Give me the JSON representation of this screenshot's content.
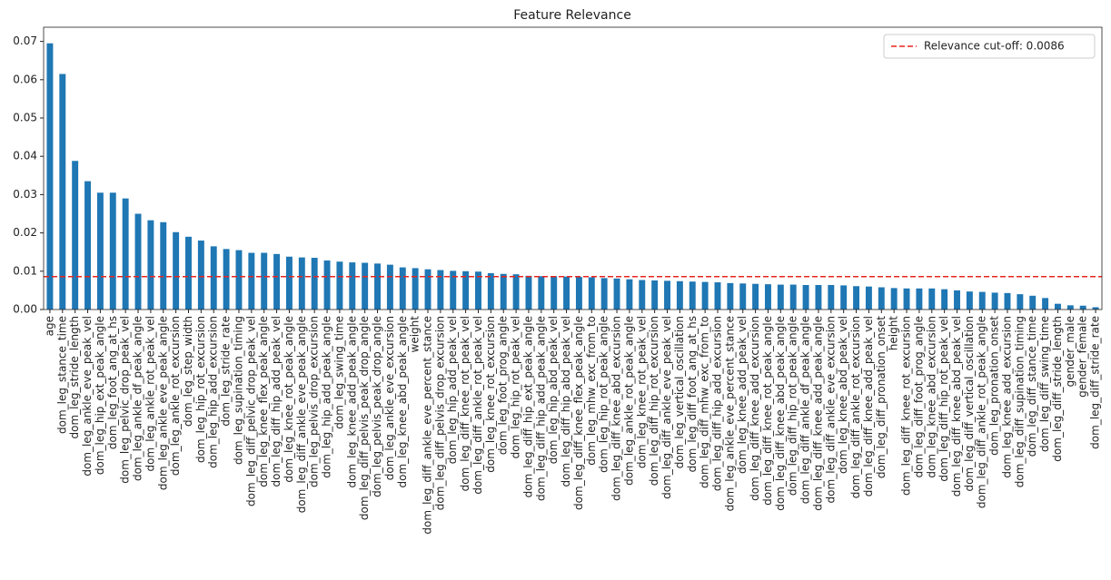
{
  "chart_data": {
    "type": "bar",
    "title": "Feature Relevance",
    "categories": [
      "age",
      "dom_leg_stance_time",
      "dom_leg_stride_length",
      "dom_leg_ankle_eve_peak_vel",
      "dom_leg_hip_ext_peak_angle",
      "dom_leg_foot_ang_at_hs",
      "dom_leg_pelvic_drop_peak_vel",
      "dom_leg_ankle_df_peak_angle",
      "dom_leg_ankle_rot_peak_vel",
      "dom_leg_ankle_eve_peak_angle",
      "dom_leg_ankle_rot_excursion",
      "dom_leg_step_width",
      "dom_leg_hip_rot_excursion",
      "dom_leg_hip_add_excursion",
      "dom_leg_stride_rate",
      "dom_leg_supination_timing",
      "dom_leg_diff_pelvic_drop_peak_vel",
      "dom_leg_knee_flex_peak_angle",
      "dom_leg_diff_hip_add_peak_vel",
      "dom_leg_knee_rot_peak_angle",
      "dom_leg_diff_ankle_eve_peak_angle",
      "dom_leg_pelvis_drop_excursion",
      "dom_leg_hip_add_peak_angle",
      "dom_leg_swing_time",
      "dom_leg_knee_add_peak_angle",
      "dom_leg_diff_pelvis_peak_drop_angle",
      "dom_leg_pelvis_peak_drop_angle",
      "dom_leg_ankle_eve_excursion",
      "dom_leg_knee_abd_peak_angle",
      "weight",
      "dom_leg_diff_ankle_eve_percent_stance",
      "dom_leg_diff_pelvis_drop_excursion",
      "dom_leg_hip_add_peak_vel",
      "dom_leg_diff_knee_rot_peak_vel",
      "dom_leg_diff_ankle_rot_peak_vel",
      "dom_leg_knee_rot_excursion",
      "dom_leg_foot_prog_angle",
      "dom_leg_hip_rot_peak_vel",
      "dom_leg_diff_hip_ext_peak_angle",
      "dom_leg_diff_hip_add_peak_angle",
      "dom_leg_hip_abd_peak_vel",
      "dom_leg_diff_hip_abd_peak_vel",
      "dom_leg_diff_knee_flex_peak_angle",
      "dom_leg_mhw_exc_from_to",
      "dom_leg_hip_rot_peak_angle",
      "dom_leg_diff_knee_abd_excursion",
      "dom_leg_ankle_rot_peak_angle",
      "dom_leg_knee_rot_peak_vel",
      "dom_leg_diff_hip_rot_excursion",
      "dom_leg_diff_ankle_eve_peak_vel",
      "dom_leg_vertical_oscillation",
      "dom_leg_diff_foot_ang_at_hs",
      "dom_leg_diff_mhw_exc_from_to",
      "dom_leg_diff_hip_add_excursion",
      "dom_leg_ankle_eve_percent_stance",
      "dom_leg_knee_add_peak_vel",
      "dom_leg_diff_knee_add_excursion",
      "dom_leg_diff_knee_rot_peak_angle",
      "dom_leg_diff_knee_abd_peak_angle",
      "dom_leg_diff_hip_rot_peak_angle",
      "dom_leg_diff_ankle_df_peak_angle",
      "dom_leg_diff_knee_add_peak_angle",
      "dom_leg_diff_ankle_eve_excursion",
      "dom_leg_knee_abd_peak_vel",
      "dom_leg_diff_ankle_rot_excursion",
      "dom_leg_diff_knee_add_peak_vel",
      "dom_leg_diff_pronation_onset",
      "height",
      "dom_leg_diff_knee_rot_excursion",
      "dom_leg_diff_foot_prog_angle",
      "dom_leg_knee_abd_excursion",
      "dom_leg_diff_hip_rot_peak_vel",
      "dom_leg_diff_knee_abd_peak_vel",
      "dom_leg_diff_vertical_oscillation",
      "dom_leg_diff_ankle_rot_peak_angle",
      "dom_leg_pronation_onset",
      "dom_leg_knee_add_excursion",
      "dom_leg_diff_supination_timing",
      "dom_leg_diff_stance_time",
      "dom_leg_diff_swing_time",
      "dom_leg_diff_stride_length",
      "gender_male",
      "gender_female",
      "dom_leg_diff_stride_rate"
    ],
    "values": [
      0.0695,
      0.0615,
      0.0388,
      0.0335,
      0.0305,
      0.0305,
      0.029,
      0.025,
      0.0233,
      0.0228,
      0.0202,
      0.019,
      0.018,
      0.0165,
      0.0158,
      0.0155,
      0.0148,
      0.0148,
      0.0145,
      0.0138,
      0.0136,
      0.0135,
      0.0128,
      0.0125,
      0.0123,
      0.0122,
      0.012,
      0.0117,
      0.011,
      0.0108,
      0.0105,
      0.0103,
      0.0101,
      0.01,
      0.0099,
      0.0095,
      0.0093,
      0.0092,
      0.0088,
      0.0087,
      0.0087,
      0.0086,
      0.0085,
      0.0084,
      0.0082,
      0.0081,
      0.0079,
      0.0077,
      0.0076,
      0.0075,
      0.0074,
      0.0073,
      0.0072,
      0.0071,
      0.0069,
      0.0068,
      0.0067,
      0.0066,
      0.0065,
      0.0065,
      0.0064,
      0.0064,
      0.0064,
      0.0063,
      0.0061,
      0.006,
      0.0058,
      0.0056,
      0.0055,
      0.0055,
      0.0055,
      0.0053,
      0.005,
      0.0047,
      0.0046,
      0.0044,
      0.0043,
      0.004,
      0.0036,
      0.003,
      0.0015,
      0.0011,
      0.001,
      0.0006
    ],
    "color": "#1f77b4",
    "ylim": [
      0,
      0.0737
    ],
    "yticks": [
      {
        "value": 0,
        "label": "0.00"
      },
      {
        "value": 0.01,
        "label": "0.01"
      },
      {
        "value": 0.02,
        "label": "0.02"
      },
      {
        "value": 0.03,
        "label": "0.03"
      },
      {
        "value": 0.04,
        "label": "0.04"
      },
      {
        "value": 0.05,
        "label": "0.05"
      },
      {
        "value": 0.06,
        "label": "0.06"
      },
      {
        "value": 0.07,
        "label": "0.07"
      }
    ],
    "cutoff": {
      "value": 0.0086,
      "label": "Relevance cut-off: 0.0086",
      "color": "#e8251f"
    },
    "legend": "upper right"
  }
}
